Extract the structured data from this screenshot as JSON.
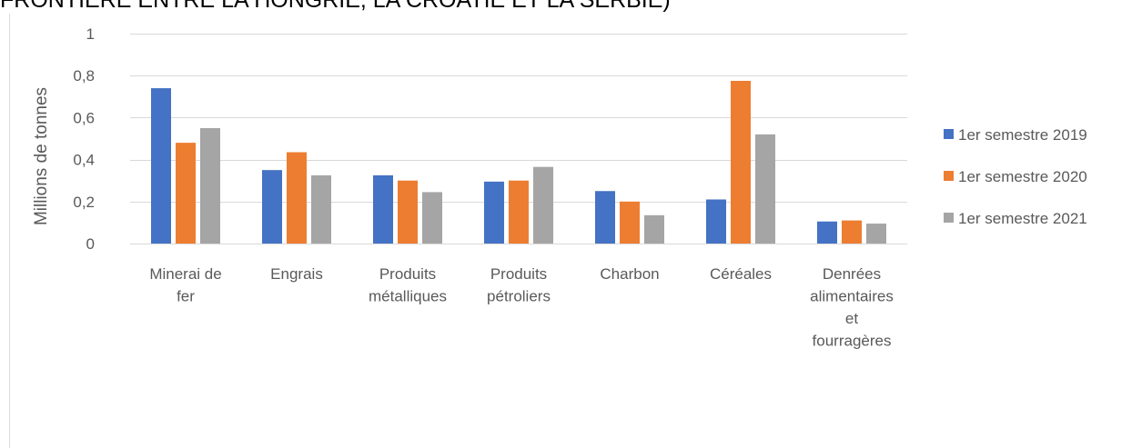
{
  "chart_data": {
    "type": "bar",
    "title": "FRONTIÈRE ENTRE LA HONGRIE, LA CROATIE ET LA SERBIE)",
    "ylabel": "Millions de tonnes",
    "xlabel": "",
    "ylim": [
      0,
      1
    ],
    "yticks": [
      "0",
      "0,2",
      "0,4",
      "0,6",
      "0,8",
      "1"
    ],
    "grid": true,
    "legend_position": "right",
    "categories": [
      [
        "Minerai de",
        "fer"
      ],
      [
        "Engrais"
      ],
      [
        "Produits",
        "métalliques"
      ],
      [
        "Produits",
        "pétroliers"
      ],
      [
        "Charbon"
      ],
      [
        "Céréales"
      ],
      [
        "Denrées",
        "alimentaires",
        "et",
        "fourragères"
      ]
    ],
    "series": [
      {
        "name": "1er semestre 2019",
        "color": "#4472C4",
        "values": [
          0.74,
          0.35,
          0.325,
          0.295,
          0.25,
          0.21,
          0.105
        ]
      },
      {
        "name": "1er semestre 2020",
        "color": "#ED7D31",
        "values": [
          0.48,
          0.435,
          0.3,
          0.3,
          0.2,
          0.775,
          0.11
        ]
      },
      {
        "name": "1er semestre 2021",
        "color": "#A5A5A5",
        "values": [
          0.55,
          0.325,
          0.245,
          0.365,
          0.135,
          0.52,
          0.095
        ]
      }
    ]
  }
}
